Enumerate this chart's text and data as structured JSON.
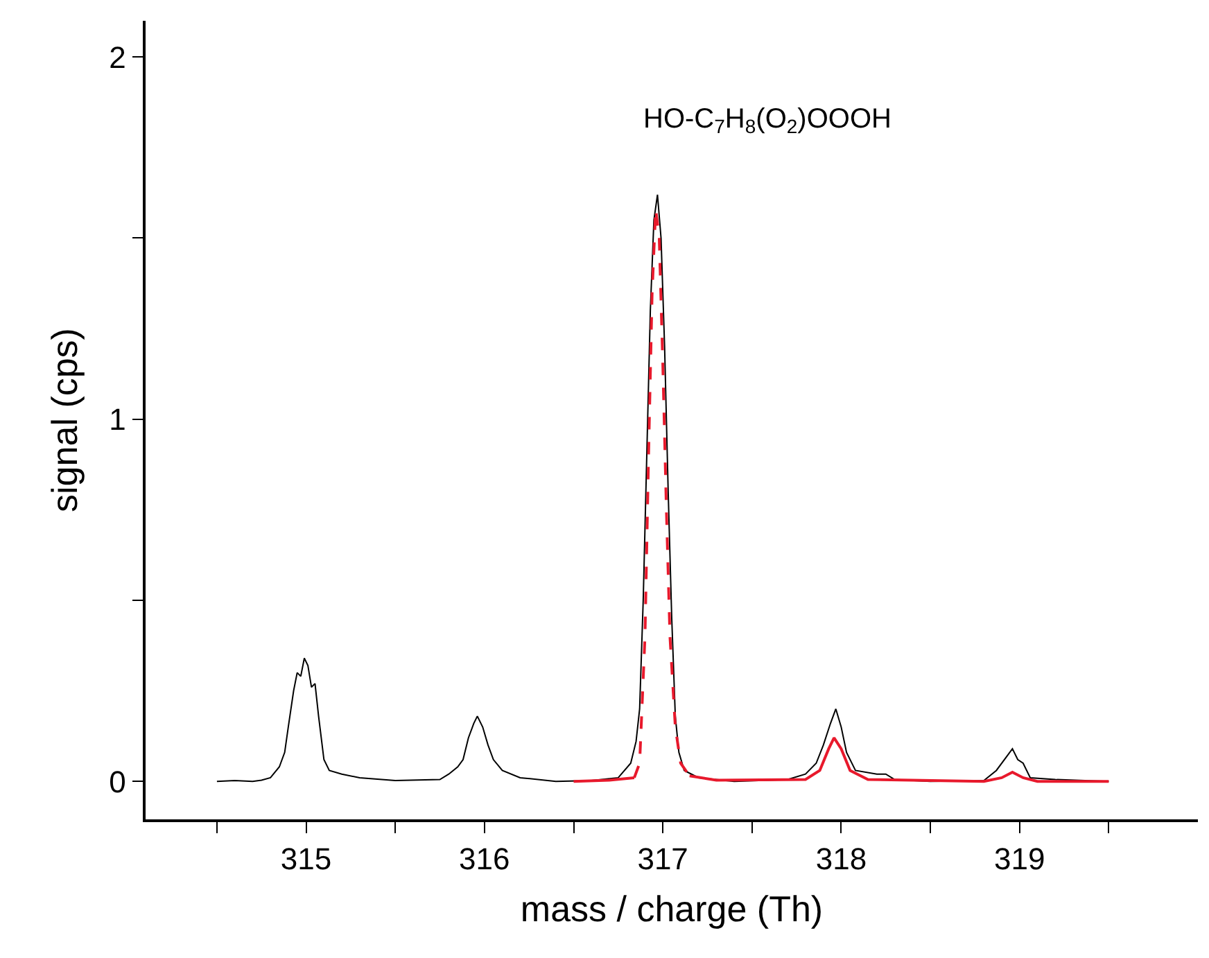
{
  "chart_data": {
    "type": "line",
    "xlabel": "mass / charge (Th)",
    "ylabel": "signal (cps)",
    "xlim": [
      314.1,
      320
    ],
    "ylim": [
      -0.105,
      2.1
    ],
    "xticks": [
      {
        "value": 314.5,
        "label": null
      },
      315,
      {
        "value": 315.5,
        "label": null
      },
      316,
      {
        "value": 316.5,
        "label": null
      },
      317,
      {
        "value": 317.5,
        "label": null
      },
      318,
      {
        "value": 318.5,
        "label": null
      },
      319,
      {
        "value": 319.5,
        "label": null
      }
    ],
    "yticks": [
      0,
      {
        "value": 0.5,
        "label": null
      },
      1,
      {
        "value": 1.5,
        "label": null
      },
      2
    ],
    "annotations": [
      "HO-C$_{7}$H$_{8}$(O$_{2}$)OOOH"
    ],
    "series": [
      {
        "color": "#000000",
        "line_style": "solid",
        "x": [
          314.5,
          314.6,
          314.7,
          314.75,
          314.8,
          314.85,
          314.88,
          314.9,
          314.93,
          314.95,
          314.97,
          314.99,
          315.01,
          315.03,
          315.05,
          315.07,
          315.1,
          315.13,
          315.2,
          315.3,
          315.5,
          315.75,
          315.8,
          315.85,
          315.88,
          315.91,
          315.94,
          315.96,
          315.99,
          316.02,
          316.05,
          316.1,
          316.2,
          316.4,
          316.6,
          316.75,
          316.82,
          316.85,
          316.87,
          316.89,
          316.91,
          316.93,
          316.95,
          316.97,
          316.99,
          317.01,
          317.03,
          317.05,
          317.07,
          317.09,
          317.12,
          317.2,
          317.4,
          317.7,
          317.8,
          317.86,
          317.9,
          317.94,
          317.97,
          318.0,
          318.03,
          318.08,
          318.2,
          318.25,
          318.3,
          318.5,
          318.8,
          318.87,
          318.93,
          318.96,
          318.99,
          319.02,
          319.06,
          319.2,
          319.5
        ],
        "values": [
          0,
          0.002,
          0,
          0.003,
          0.01,
          0.04,
          0.08,
          0.15,
          0.25,
          0.3,
          0.29,
          0.34,
          0.32,
          0.26,
          0.27,
          0.18,
          0.06,
          0.03,
          0.02,
          0.01,
          0.002,
          0.005,
          0.02,
          0.04,
          0.06,
          0.12,
          0.16,
          0.18,
          0.15,
          0.1,
          0.06,
          0.03,
          0.01,
          0,
          0.002,
          0.01,
          0.05,
          0.11,
          0.2,
          0.5,
          0.9,
          1.3,
          1.55,
          1.62,
          1.5,
          1.2,
          0.8,
          0.45,
          0.18,
          0.08,
          0.03,
          0.01,
          0,
          0.005,
          0.02,
          0.05,
          0.1,
          0.16,
          0.2,
          0.15,
          0.08,
          0.03,
          0.02,
          0.02,
          0.005,
          0,
          0.002,
          0.03,
          0.07,
          0.09,
          0.06,
          0.05,
          0.01,
          0.005,
          0
        ]
      },
      {
        "color": "#e8192c",
        "line_style": "dashed",
        "x": [
          316.84,
          316.87,
          316.9,
          316.92,
          316.94,
          316.96,
          316.98,
          317.0,
          317.02,
          317.04,
          317.07,
          317.1,
          317.15
        ],
        "values": [
          0.01,
          0.05,
          0.4,
          0.9,
          1.35,
          1.58,
          1.5,
          1.15,
          0.75,
          0.4,
          0.15,
          0.05,
          0.015
        ]
      },
      {
        "color": "#e8192c",
        "line_style": "solid",
        "x": [
          316.5,
          316.7,
          316.84,
          317.0,
          317.15,
          317.3,
          317.8,
          317.88,
          317.93,
          317.96,
          318.0,
          318.05,
          318.15,
          318.8,
          318.9,
          318.96,
          319.02,
          319.1,
          319.5
        ],
        "values": [
          0,
          0.003,
          0.01,
          null,
          0.015,
          0.003,
          0.005,
          0.03,
          0.09,
          0.12,
          0.09,
          0.03,
          0.005,
          0,
          0.01,
          0.025,
          0.01,
          0,
          0
        ]
      }
    ]
  }
}
